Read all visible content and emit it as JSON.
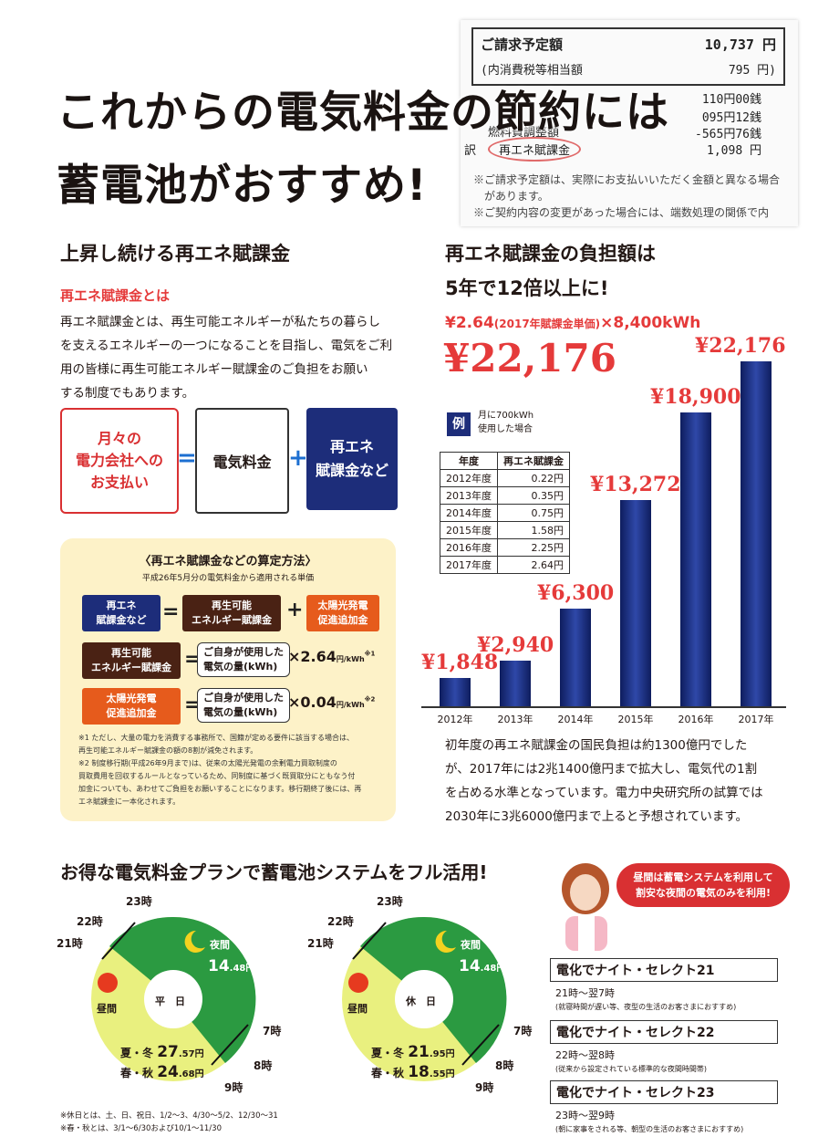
{
  "receipt": {
    "line1_label": "ご請求予定額",
    "line1_value": "10,737 円",
    "line2_label": "(内消費税等相当額",
    "line2_value": "795 円)",
    "line3_value": "110円00銭",
    "line4_value": "095円12銭",
    "line5_label": "燃料費調整額",
    "line5_value": "-565円76銭",
    "line6_prefix": "訳",
    "line6_label": "再エネ賦課金",
    "line6_value": "1,098 円",
    "note1": "※ご請求予定額は、実際にお支払いいただく金額と異なる場合",
    "note2": "があります。",
    "note3": "※ご契約内容の変更があった場合には、端数処理の関係で内"
  },
  "hero": {
    "line1": "これからの電気料金の節約には",
    "line2": "蓄電池がおすすめ!"
  },
  "left": {
    "heading": "上昇し続ける再エネ賦課金",
    "subheading": "再エネ賦課金とは",
    "para": [
      "再エネ賦課金とは、再生可能エネルギーが私たちの暮らし",
      "を支えるエネルギーの一つになることを目指し、電気をご利",
      "用の皆様に再生可能エネルギー賦課金のご負担をお願い",
      "する制度でもあります。"
    ],
    "box1": [
      "月々の",
      "電力会社への",
      "お支払い"
    ],
    "eq": "=",
    "box2": "電気料金",
    "plus": "+",
    "box3": [
      "再エネ",
      "賦課金など"
    ]
  },
  "calc": {
    "title": "〈再エネ賦課金などの算定方法〉",
    "sub": "平成26年5月分の電気料金から適用される単価",
    "r1a": [
      "再エネ",
      "賦課金など"
    ],
    "r1b": [
      "再生可能",
      "エネルギー賦課金"
    ],
    "r1c": [
      "太陽光発電",
      "促進追加金"
    ],
    "r2a": [
      "再生可能",
      "エネルギー賦課金"
    ],
    "r3a": [
      "太陽光発電",
      "促進追加金"
    ],
    "pill": [
      "ご自身が使用した",
      "電気の量(kWh)"
    ],
    "times1": "×2.64",
    "unit1": "円/kWh",
    "sup1": "※1",
    "times2": "×0.04",
    "unit2": "円/kWh",
    "sup2": "※2",
    "notes": [
      "※1 ただし、大量の電力を消費する事務所で、国籍が定める要件に該当する場合は、",
      "再生可能エネルギー賦課金の額の8割が減免されます。",
      "※2 制度移行期(平成26年9月まで)は、従来の太陽光発電の余剰電力買取制度の",
      "買取費用を回収するルールとなっているため、同制度に基づく既買取分にともなう付",
      "加金についても、あわせてご負担をお願いすることになります。移行期終了後には、再",
      "エネ賦課金に一本化されます。"
    ]
  },
  "right": {
    "heading1": "再エネ賦課金の負担額は",
    "heading2": "5年で12倍以上に!",
    "formula_a": "¥2.64",
    "formula_b": "(2017年賦課金単価)",
    "formula_c": "×8,400kWh",
    "total": "¥22,176",
    "ex_badge": "例",
    "ex_text": [
      "月に700kWh",
      "使用した場合"
    ],
    "table_head": [
      "年度",
      "再エネ賦課金"
    ],
    "table_rows": [
      [
        "2012年度",
        "0.22円"
      ],
      [
        "2013年度",
        "0.35円"
      ],
      [
        "2014年度",
        "0.75円"
      ],
      [
        "2015年度",
        "1.58円"
      ],
      [
        "2016年度",
        "2.25円"
      ],
      [
        "2017年度",
        "2.64円"
      ]
    ],
    "para": [
      "初年度の再エネ賦課金の国民負担は約1300億円でした",
      "が、2017年には2兆1400億円まで拡大し、電気代の1割",
      "を占める水準となっています。電力中央研究所の試算では",
      "2030年に3兆6000億円まで上ると予想されています。"
    ]
  },
  "chart_data": {
    "type": "bar",
    "categories": [
      "2012年",
      "2013年",
      "2014年",
      "2015年",
      "2016年",
      "2017年"
    ],
    "values": [
      1848,
      2940,
      6300,
      13272,
      18900,
      22176
    ],
    "labels": [
      "¥1,848",
      "¥2,940",
      "¥6,300",
      "¥13,272",
      "¥18,900",
      "¥22,176"
    ],
    "colors": {
      "bar": "#1d2d7a",
      "label": "#e53a3a"
    }
  },
  "bottom": {
    "heading": "お得な電気料金プランで蓄電池システムをフル活用!",
    "bubble": [
      "昼間は蓄電システムを利用して",
      "割安な夜間の電気のみを利用!"
    ],
    "clock1": {
      "h23": "23時",
      "h22": "22時",
      "h21": "21時",
      "h7": "7時",
      "h8": "8時",
      "h9": "9時",
      "night": "夜間",
      "night_price": "14",
      "night_dec": ".48円",
      "day": "昼間",
      "center": "平　日",
      "ws": "夏・冬",
      "ws_price": "27",
      "ws_dec": ".57円",
      "sa": "春・秋",
      "sa_price": "24",
      "sa_dec": ".68円"
    },
    "clock2": {
      "h23": "23時",
      "h22": "22時",
      "h21": "21時",
      "h7": "7時",
      "h8": "8時",
      "h9": "9時",
      "night": "夜間",
      "night_price": "14",
      "night_dec": ".48円",
      "day": "昼間",
      "center": "休　日",
      "ws": "夏・冬",
      "ws_price": "21",
      "ws_dec": ".95円",
      "sa": "春・秋",
      "sa_price": "18",
      "sa_dec": ".55円"
    },
    "foot1": "※休日とは、土、日、祝日、1/2～3、4/30～5/2、12/30～31",
    "foot2": "※春・秋とは、3/1～6/30および10/1～11/30",
    "plans": [
      {
        "title": "電化でナイト・セレクト21",
        "hours": "21時～翌7時",
        "desc": "(就寝時間が遅い等、夜型の生活のお客さまにおすすめ)"
      },
      {
        "title": "電化でナイト・セレクト22",
        "hours": "22時～翌8時",
        "desc": "(従来から設定されている標準的な夜間時間帯)"
      },
      {
        "title": "電化でナイト・セレクト23",
        "hours": "23時～翌9時",
        "desc": "(朝に家事をされる等、朝型の生活のお客さまにおすすめ)"
      }
    ]
  }
}
